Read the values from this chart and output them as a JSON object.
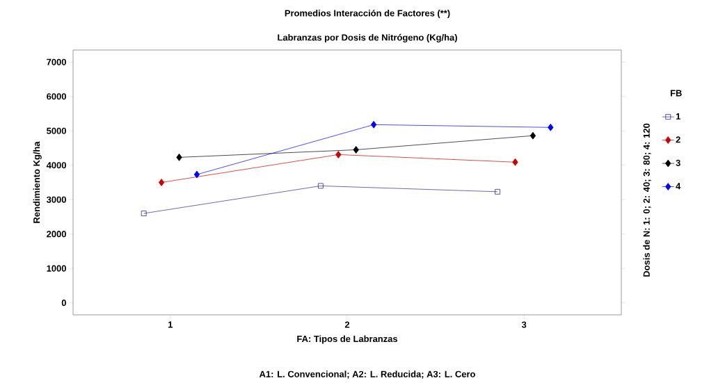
{
  "chart_data": {
    "type": "line",
    "title": "Promedios Interacción de Factores (**)",
    "subtitle": "Labranzas por Dosis de Nitrógeno (Kg/ha)",
    "xlabel": "FA: Tipos de Labranzas",
    "ylabel": "Rendimiento Kg/ha",
    "y2label": "Dosis de  N: 1: 0; 2: 40; 3: 80; 4: 120",
    "annotations": [
      "A1: L. Convencional; A2: L. Reducida; A3: L. Cero"
    ],
    "legend_title": "FB",
    "legend": "right",
    "grid": false,
    "line_style": "solid",
    "xlim": [
      0.45,
      3.55
    ],
    "xticks": [
      1,
      2,
      3
    ],
    "ylim": [
      -350,
      7350
    ],
    "yticks": [
      0,
      1000,
      2000,
      3000,
      4000,
      5000,
      6000,
      7000
    ],
    "series": [
      {
        "name": "1",
        "color": "#2b2b8f",
        "marker": "square",
        "x": [
          0.85,
          1.85,
          2.85
        ],
        "values": [
          2600,
          3400,
          3230
        ]
      },
      {
        "name": "2",
        "color": "#cc0000",
        "marker": "diamond",
        "x": [
          0.95,
          1.95,
          2.95
        ],
        "values": [
          3500,
          4310,
          4090
        ]
      },
      {
        "name": "3",
        "color": "#000000",
        "marker": "diamond",
        "x": [
          1.05,
          2.05,
          3.05
        ],
        "values": [
          4230,
          4450,
          4860
        ]
      },
      {
        "name": "4",
        "color": "#0000ff",
        "marker": "diamond",
        "x": [
          1.15,
          2.15,
          3.15
        ],
        "values": [
          3730,
          5180,
          5100
        ]
      }
    ]
  }
}
